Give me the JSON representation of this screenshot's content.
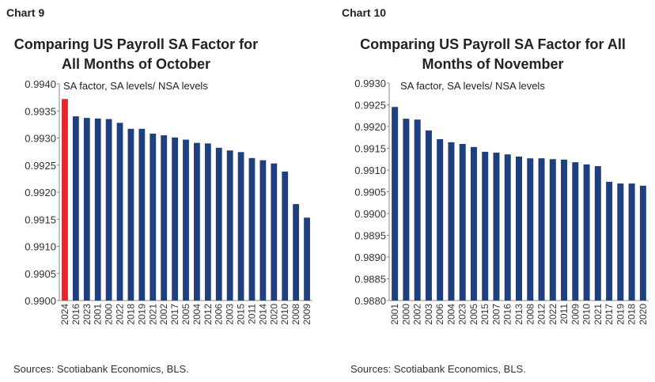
{
  "chart_data": [
    {
      "type": "bar",
      "label": "Chart 9",
      "title": [
        "Comparing US Payroll SA Factor for",
        "All Months of October"
      ],
      "subtitle": "SA factor, SA levels/ NSA levels",
      "categories": [
        "2024",
        "2016",
        "2023",
        "2001",
        "2000",
        "2022",
        "2018",
        "2019",
        "2021",
        "2002",
        "2017",
        "2005",
        "2004",
        "2012",
        "2006",
        "2003",
        "2015",
        "2011",
        "2014",
        "2020",
        "2010",
        "2008",
        "2009"
      ],
      "values": [
        0.99372,
        0.9934,
        0.99337,
        0.99336,
        0.99335,
        0.99328,
        0.99317,
        0.99317,
        0.99308,
        0.99305,
        0.99301,
        0.99297,
        0.99291,
        0.9929,
        0.99282,
        0.99277,
        0.99274,
        0.99263,
        0.99259,
        0.99253,
        0.99238,
        0.99178,
        0.99153
      ],
      "color": "#1f3f7f",
      "colors": [
        "#e8262a",
        "#1f3f7f",
        "#1f3f7f",
        "#1f3f7f",
        "#1f3f7f",
        "#1f3f7f",
        "#1f3f7f",
        "#1f3f7f",
        "#1f3f7f",
        "#1f3f7f",
        "#1f3f7f",
        "#1f3f7f",
        "#1f3f7f",
        "#1f3f7f",
        "#1f3f7f",
        "#1f3f7f",
        "#1f3f7f",
        "#1f3f7f",
        "#1f3f7f",
        "#1f3f7f",
        "#1f3f7f",
        "#1f3f7f",
        "#1f3f7f"
      ],
      "ylim": [
        0.99,
        0.994
      ],
      "yticks": [
        {
          "value": 0.99,
          "label": "0.9900"
        },
        0.9905,
        {
          "value": 0.991,
          "label": "0.9910"
        },
        0.9915,
        {
          "value": 0.992,
          "label": "0.9920"
        },
        0.9925,
        {
          "value": 0.993,
          "label": "0.9930"
        },
        0.9935,
        {
          "value": 0.994,
          "label": "0.9940"
        }
      ],
      "source": "Sources: Scotiabank Economics, BLS."
    },
    {
      "type": "bar",
      "label": "Chart 10",
      "title": [
        "Comparing US Payroll SA Factor for All",
        "Months of November"
      ],
      "subtitle": "SA factor, SA levels/ NSA levels",
      "categories": [
        "2001",
        "2000",
        "2002",
        "2003",
        "2006",
        "2004",
        "2023",
        "2005",
        "2015",
        "2007",
        "2016",
        "2013",
        "2008",
        "2012",
        "2022",
        "2011",
        "2009",
        "2010",
        "2021",
        "2017",
        "2019",
        "2018",
        "2020"
      ],
      "values": [
        0.99245,
        0.99218,
        0.99216,
        0.99191,
        0.99171,
        0.99164,
        0.9916,
        0.99153,
        0.99142,
        0.9914,
        0.99136,
        0.99131,
        0.99127,
        0.99127,
        0.99125,
        0.99124,
        0.99118,
        0.99113,
        0.99109,
        0.99073,
        0.99069,
        0.99069,
        0.99064
      ],
      "color": "#1f3f7f",
      "ylim": [
        0.988,
        0.993
      ],
      "yticks": [
        {
          "value": 0.988,
          "label": "0.9880"
        },
        0.9885,
        {
          "value": 0.989,
          "label": "0.9890"
        },
        0.9895,
        {
          "value": 0.99,
          "label": "0.9900"
        },
        0.9905,
        {
          "value": 0.991,
          "label": "0.9910"
        },
        0.9915,
        {
          "value": 0.992,
          "label": "0.9920"
        },
        0.9925,
        {
          "value": 0.993,
          "label": "0.9930"
        }
      ],
      "source": "Sources: Scotiabank Economics, BLS."
    }
  ]
}
